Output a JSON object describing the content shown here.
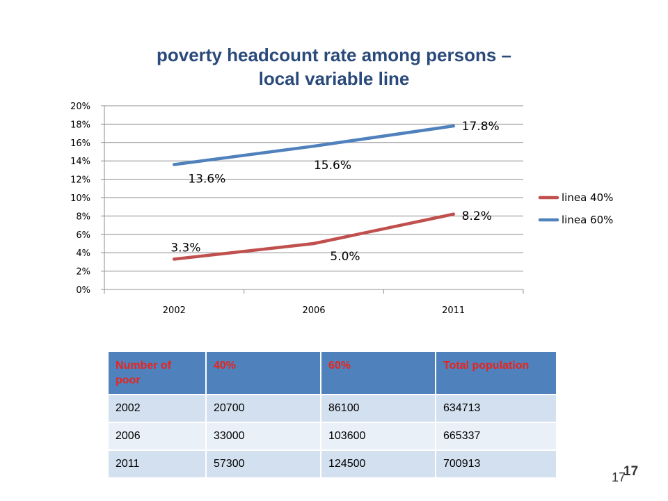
{
  "chart_data": {
    "type": "line",
    "title_lines": [
      "poverty headcount rate among persons –",
      "local variable line"
    ],
    "categories": [
      "2002",
      "2006",
      "2011"
    ],
    "y_ticks": [
      "0%",
      "2%",
      "4%",
      "6%",
      "8%",
      "10%",
      "12%",
      "14%",
      "16%",
      "18%",
      "20%"
    ],
    "ylim": [
      0,
      20
    ],
    "y_unit": "%",
    "grid": true,
    "legend_position": "right",
    "series": [
      {
        "name": "linea 40%",
        "color": "#c0504d",
        "values": [
          3.3,
          5.0,
          8.2
        ],
        "labels": [
          "3.3%",
          "5.0%",
          "8.2%"
        ]
      },
      {
        "name": "linea 60%",
        "color": "#4f81bd",
        "values": [
          13.6,
          15.6,
          17.8
        ],
        "labels": [
          "13.6%",
          "15.6%",
          "17.8%"
        ]
      }
    ]
  },
  "table": {
    "headers": [
      "Number of poor",
      "40%",
      "60%",
      "Total population"
    ],
    "rows": [
      [
        "2002",
        "20700",
        "86100",
        "634713"
      ],
      [
        "2006",
        "33000",
        "103600",
        "665337"
      ],
      [
        "2011",
        "57300",
        "124500",
        "700913"
      ]
    ]
  },
  "page_numbers": [
    "17",
    "17"
  ]
}
